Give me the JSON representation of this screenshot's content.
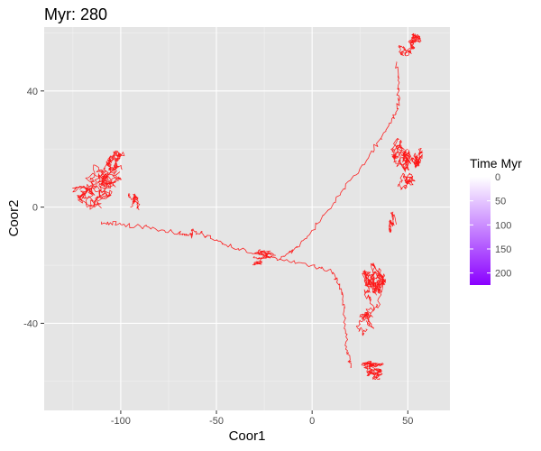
{
  "chart_data": {
    "type": "line",
    "title": "Myr: 280",
    "xlabel": "Coor1",
    "ylabel": "Coor2",
    "xlim": [
      -140,
      72
    ],
    "ylim": [
      -70,
      62
    ],
    "x_ticks": [
      -100,
      -50,
      0,
      50
    ],
    "y_ticks": [
      -40,
      0,
      40
    ],
    "grid": true,
    "panel_background": "#e5e5e5",
    "line_color": "#ff0000",
    "legend": {
      "title": "Time Myr",
      "position": "right",
      "labels": [
        "0",
        "50",
        "100",
        "150",
        "200"
      ],
      "values": [
        0,
        50,
        100,
        150,
        200
      ],
      "range": [
        0,
        225
      ],
      "color_low": "#ffffff",
      "color_high": "#8a00ff"
    },
    "series": [
      {
        "values": [
          {
            "x": -17,
            "y": -18
          },
          {
            "x": -30,
            "y": -16
          },
          {
            "x": -45,
            "y": -13
          },
          {
            "x": -55,
            "y": -10
          },
          {
            "x": -62,
            "y": -8
          },
          {
            "x": -63,
            "y": -10
          },
          {
            "x": -70,
            "y": -9
          },
          {
            "x": -85,
            "y": -7
          },
          {
            "x": -100,
            "y": -6
          },
          {
            "x": -110,
            "y": -5
          }
        ]
      },
      {
        "values": [
          {
            "x": -17,
            "y": -18
          },
          {
            "x": -10,
            "y": -15
          },
          {
            "x": 0,
            "y": -8
          },
          {
            "x": 15,
            "y": 5
          },
          {
            "x": 30,
            "y": 18
          },
          {
            "x": 40,
            "y": 28
          },
          {
            "x": 45,
            "y": 34
          },
          {
            "x": 45,
            "y": 42
          },
          {
            "x": 44,
            "y": 50
          }
        ]
      },
      {
        "values": [
          {
            "x": -17,
            "y": -18
          },
          {
            "x": 0,
            "y": -20
          },
          {
            "x": 10,
            "y": -22
          },
          {
            "x": 15,
            "y": -28
          },
          {
            "x": 17,
            "y": -38
          },
          {
            "x": 18,
            "y": -48
          },
          {
            "x": 20,
            "y": -55
          }
        ]
      }
    ],
    "clusters": [
      {
        "x": -112,
        "y": 7,
        "rx": 14,
        "ry": 9,
        "n": 340
      },
      {
        "x": -100,
        "y": 14,
        "rx": 8,
        "ry": 6,
        "n": 160
      },
      {
        "x": -95,
        "y": 0,
        "rx": 5,
        "ry": 6,
        "n": 90
      },
      {
        "x": -30,
        "y": -17,
        "rx": 12,
        "ry": 3,
        "n": 110
      },
      {
        "x": 52,
        "y": 55,
        "rx": 7,
        "ry": 5,
        "n": 200
      },
      {
        "x": 50,
        "y": 20,
        "rx": 9,
        "ry": 8,
        "n": 320
      },
      {
        "x": 50,
        "y": 9,
        "rx": 6,
        "ry": 5,
        "n": 120
      },
      {
        "x": 30,
        "y": -28,
        "rx": 9,
        "ry": 9,
        "n": 320
      },
      {
        "x": 44,
        "y": -6,
        "rx": 4,
        "ry": 6,
        "n": 80
      },
      {
        "x": 28,
        "y": -42,
        "rx": 6,
        "ry": 6,
        "n": 120
      },
      {
        "x": 32,
        "y": -57,
        "rx": 12,
        "ry": 4,
        "n": 220
      }
    ]
  }
}
